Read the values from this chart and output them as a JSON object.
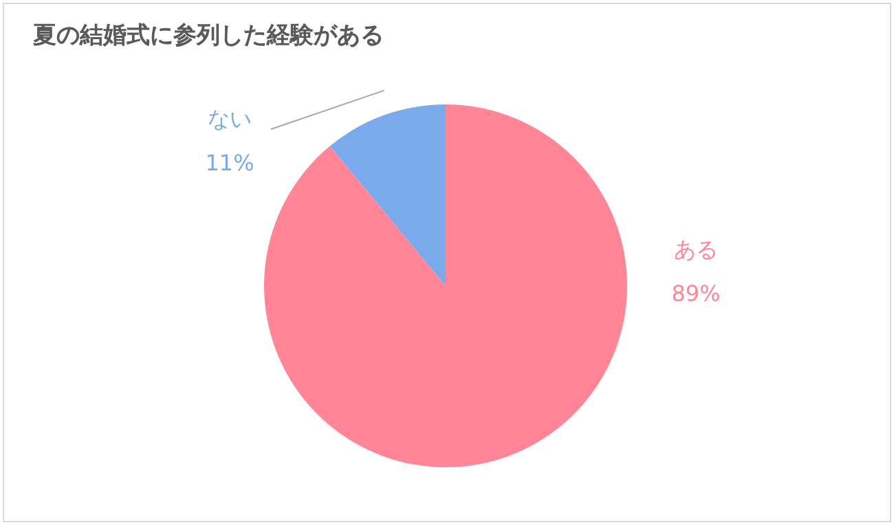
{
  "chart_data": {
    "type": "pie",
    "title": "夏の結婚式に参列した経験がある",
    "categories": [
      "ある",
      "ない"
    ],
    "values": [
      89,
      11
    ],
    "colors": [
      "#ff8597",
      "#7aaaec"
    ],
    "value_labels": [
      "89%",
      "11%"
    ],
    "legend": false
  }
}
